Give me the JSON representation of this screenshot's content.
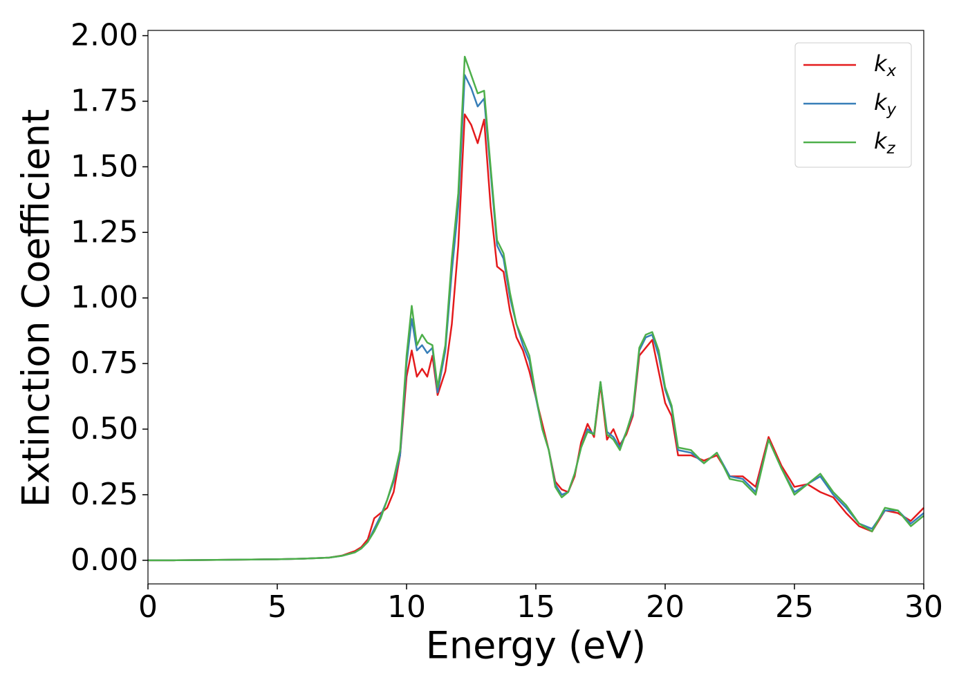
{
  "chart_data": {
    "type": "line",
    "xlabel": "Energy (eV)",
    "ylabel": "Extinction Coefficient",
    "x": [
      0,
      1,
      2,
      3,
      4,
      5,
      6,
      7,
      7.5,
      8,
      8.25,
      8.5,
      8.75,
      9,
      9.25,
      9.5,
      9.75,
      10,
      10.2,
      10.4,
      10.6,
      10.8,
      11,
      11.2,
      11.5,
      11.75,
      12,
      12.25,
      12.5,
      12.75,
      13,
      13.25,
      13.5,
      13.75,
      14,
      14.25,
      14.5,
      14.75,
      15,
      15.25,
      15.5,
      15.75,
      16,
      16.25,
      16.5,
      16.75,
      17,
      17.25,
      17.5,
      17.75,
      18,
      18.25,
      18.5,
      18.75,
      19,
      19.25,
      19.5,
      19.75,
      20,
      20.25,
      20.5,
      21,
      21.5,
      22,
      22.5,
      23,
      23.5,
      24,
      24.5,
      25,
      25.5,
      26,
      26.5,
      27,
      27.5,
      28,
      28.5,
      29,
      29.5,
      30
    ],
    "series": [
      {
        "name": "kx",
        "color": "#e41a1c",
        "values": [
          0,
          0,
          0.001,
          0.002,
          0.003,
          0.004,
          0.006,
          0.01,
          0.018,
          0.035,
          0.05,
          0.08,
          0.16,
          0.18,
          0.2,
          0.26,
          0.4,
          0.7,
          0.8,
          0.7,
          0.73,
          0.7,
          0.78,
          0.63,
          0.72,
          0.9,
          1.2,
          1.7,
          1.66,
          1.59,
          1.68,
          1.35,
          1.12,
          1.1,
          0.95,
          0.85,
          0.8,
          0.72,
          0.62,
          0.52,
          0.42,
          0.3,
          0.27,
          0.26,
          0.32,
          0.45,
          0.52,
          0.47,
          0.67,
          0.46,
          0.5,
          0.44,
          0.48,
          0.55,
          0.78,
          0.81,
          0.84,
          0.72,
          0.6,
          0.55,
          0.4,
          0.4,
          0.38,
          0.4,
          0.32,
          0.32,
          0.28,
          0.47,
          0.36,
          0.28,
          0.29,
          0.26,
          0.24,
          0.18,
          0.13,
          0.11,
          0.19,
          0.18,
          0.15,
          0.2
        ]
      },
      {
        "name": "ky",
        "color": "#377eb8",
        "values": [
          0,
          0,
          0.001,
          0.002,
          0.003,
          0.004,
          0.006,
          0.01,
          0.017,
          0.03,
          0.045,
          0.07,
          0.12,
          0.17,
          0.23,
          0.3,
          0.4,
          0.75,
          0.92,
          0.8,
          0.82,
          0.79,
          0.81,
          0.64,
          0.8,
          1.1,
          1.35,
          1.85,
          1.8,
          1.73,
          1.76,
          1.48,
          1.2,
          1.15,
          1.0,
          0.9,
          0.82,
          0.76,
          0.62,
          0.5,
          0.42,
          0.29,
          0.25,
          0.26,
          0.33,
          0.43,
          0.5,
          0.48,
          0.68,
          0.49,
          0.47,
          0.43,
          0.49,
          0.56,
          0.8,
          0.85,
          0.86,
          0.78,
          0.65,
          0.58,
          0.42,
          0.41,
          0.37,
          0.41,
          0.32,
          0.31,
          0.26,
          0.46,
          0.35,
          0.26,
          0.29,
          0.32,
          0.25,
          0.2,
          0.14,
          0.12,
          0.19,
          0.19,
          0.14,
          0.18
        ]
      },
      {
        "name": "kz",
        "color": "#4daf4a",
        "values": [
          0,
          0,
          0.001,
          0.002,
          0.003,
          0.004,
          0.006,
          0.01,
          0.017,
          0.03,
          0.045,
          0.07,
          0.11,
          0.16,
          0.23,
          0.31,
          0.42,
          0.78,
          0.97,
          0.82,
          0.86,
          0.83,
          0.82,
          0.66,
          0.82,
          1.15,
          1.4,
          1.92,
          1.85,
          1.78,
          1.79,
          1.5,
          1.22,
          1.17,
          1.02,
          0.9,
          0.84,
          0.78,
          0.63,
          0.5,
          0.42,
          0.28,
          0.24,
          0.26,
          0.33,
          0.43,
          0.49,
          0.48,
          0.68,
          0.48,
          0.46,
          0.42,
          0.49,
          0.57,
          0.81,
          0.86,
          0.87,
          0.8,
          0.66,
          0.59,
          0.43,
          0.42,
          0.37,
          0.41,
          0.31,
          0.3,
          0.25,
          0.46,
          0.35,
          0.25,
          0.29,
          0.33,
          0.26,
          0.21,
          0.14,
          0.11,
          0.2,
          0.19,
          0.13,
          0.17
        ]
      }
    ],
    "xlim": [
      0,
      30
    ],
    "ylim": [
      -0.09,
      2.02
    ],
    "xticks": [
      0,
      5,
      10,
      15,
      20,
      25,
      30
    ],
    "yticks": [
      {
        "value": 0,
        "label": "0.00"
      },
      {
        "value": 0.25,
        "label": "0.25"
      },
      {
        "value": 0.5,
        "label": "0.50"
      },
      {
        "value": 0.75,
        "label": "0.75"
      },
      {
        "value": 1,
        "label": "1.00"
      },
      {
        "value": 1.25,
        "label": "1.25"
      },
      {
        "value": 1.5,
        "label": "1.50"
      },
      {
        "value": 1.75,
        "label": "1.75"
      },
      {
        "value": 2,
        "label": "2.00"
      }
    ],
    "legend": "upper right"
  }
}
